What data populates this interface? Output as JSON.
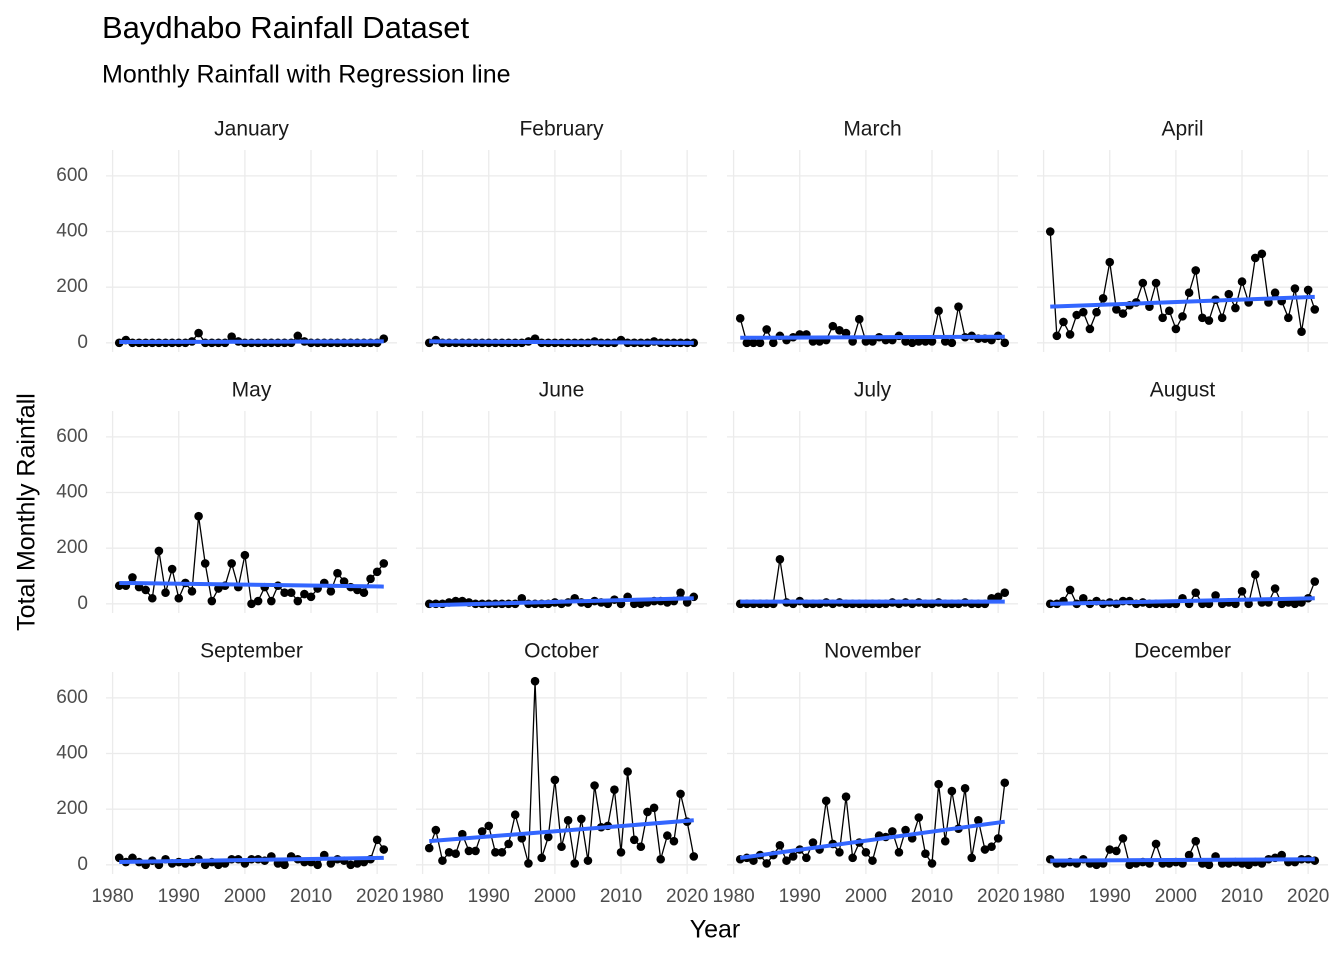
{
  "chart_data": {
    "type": "line",
    "title": "Baydhabo Rainfall Dataset",
    "subtitle": "Monthly  Rainfall with Regression line",
    "xlabel": "Year",
    "ylabel": "Total Monthly Rainfall",
    "x": [
      1981,
      1982,
      1983,
      1984,
      1985,
      1986,
      1987,
      1988,
      1989,
      1990,
      1991,
      1992,
      1993,
      1994,
      1995,
      1996,
      1997,
      1998,
      1999,
      2000,
      2001,
      2002,
      2003,
      2004,
      2005,
      2006,
      2007,
      2008,
      2009,
      2010,
      2011,
      2012,
      2013,
      2014,
      2015,
      2016,
      2017,
      2018,
      2019,
      2020,
      2021
    ],
    "xlim": [
      1979,
      2023
    ],
    "xticks": [
      1980,
      1990,
      2000,
      2010,
      2020
    ],
    "ylim": [
      -33,
      693
    ],
    "yticks": [
      0,
      200,
      400,
      600
    ],
    "grid": true,
    "color": "#000000",
    "trend_color": "#3366ff",
    "panels": [
      {
        "title": "January",
        "values": [
          0,
          10,
          0,
          0,
          0,
          0,
          0,
          0,
          0,
          0,
          0,
          5,
          35,
          0,
          0,
          0,
          0,
          22,
          5,
          0,
          0,
          0,
          0,
          0,
          0,
          0,
          0,
          25,
          5,
          0,
          0,
          0,
          0,
          0,
          0,
          0,
          0,
          0,
          0,
          0,
          15
        ],
        "trend": [
          3,
          5
        ]
      },
      {
        "title": "February",
        "values": [
          0,
          10,
          0,
          0,
          0,
          0,
          0,
          0,
          0,
          0,
          0,
          0,
          0,
          0,
          0,
          5,
          15,
          0,
          0,
          0,
          0,
          0,
          0,
          0,
          0,
          5,
          0,
          0,
          0,
          10,
          0,
          0,
          0,
          0,
          5,
          0,
          0,
          0,
          0,
          0,
          0
        ],
        "trend": [
          5,
          0
        ]
      },
      {
        "title": "March",
        "values": [
          88,
          0,
          0,
          0,
          48,
          0,
          25,
          10,
          20,
          30,
          30,
          5,
          5,
          10,
          60,
          45,
          35,
          5,
          85,
          5,
          5,
          20,
          10,
          10,
          25,
          5,
          0,
          5,
          5,
          5,
          115,
          5,
          0,
          130,
          20,
          25,
          15,
          15,
          10,
          25,
          0
        ],
        "trend": [
          18,
          22
        ]
      },
      {
        "title": "April",
        "values": [
          400,
          25,
          75,
          30,
          100,
          110,
          50,
          110,
          160,
          290,
          120,
          105,
          135,
          145,
          215,
          130,
          215,
          90,
          115,
          50,
          95,
          180,
          260,
          90,
          80,
          155,
          90,
          175,
          125,
          220,
          145,
          305,
          320,
          145,
          180,
          150,
          90,
          195,
          40,
          190,
          120
        ],
        "trend": [
          130,
          165
        ]
      },
      {
        "title": "May",
        "values": [
          65,
          65,
          95,
          60,
          50,
          20,
          190,
          40,
          125,
          20,
          75,
          45,
          315,
          145,
          10,
          55,
          65,
          145,
          60,
          175,
          0,
          10,
          60,
          10,
          65,
          40,
          40,
          10,
          35,
          25,
          55,
          75,
          45,
          110,
          80,
          60,
          50,
          40,
          90,
          115,
          145
        ],
        "trend": [
          75,
          62
        ]
      },
      {
        "title": "June",
        "values": [
          0,
          0,
          0,
          5,
          10,
          10,
          5,
          0,
          0,
          0,
          0,
          0,
          0,
          0,
          20,
          0,
          0,
          0,
          0,
          5,
          0,
          5,
          20,
          5,
          0,
          10,
          5,
          0,
          15,
          0,
          25,
          0,
          0,
          5,
          10,
          10,
          5,
          10,
          40,
          5,
          25
        ],
        "trend": [
          -5,
          20
        ]
      },
      {
        "title": "July",
        "values": [
          0,
          0,
          0,
          0,
          0,
          0,
          160,
          5,
          0,
          10,
          0,
          0,
          0,
          5,
          0,
          5,
          0,
          0,
          0,
          0,
          0,
          0,
          0,
          5,
          0,
          5,
          0,
          5,
          0,
          0,
          5,
          0,
          0,
          0,
          5,
          0,
          0,
          0,
          20,
          25,
          40
        ],
        "trend": [
          8,
          8
        ]
      },
      {
        "title": "August",
        "values": [
          0,
          0,
          10,
          50,
          0,
          20,
          0,
          10,
          0,
          5,
          0,
          10,
          10,
          0,
          5,
          0,
          0,
          0,
          0,
          0,
          20,
          0,
          40,
          0,
          0,
          30,
          0,
          5,
          0,
          45,
          0,
          105,
          5,
          5,
          55,
          0,
          5,
          0,
          5,
          20,
          80
        ],
        "trend": [
          0,
          20
        ]
      },
      {
        "title": "September",
        "values": [
          25,
          10,
          25,
          10,
          0,
          15,
          0,
          20,
          5,
          10,
          5,
          10,
          20,
          0,
          10,
          0,
          5,
          20,
          20,
          5,
          20,
          20,
          15,
          30,
          5,
          0,
          30,
          20,
          10,
          10,
          0,
          35,
          5,
          20,
          15,
          0,
          5,
          10,
          20,
          90,
          55
        ],
        "trend": [
          10,
          25
        ]
      },
      {
        "title": "October",
        "values": [
          60,
          125,
          15,
          45,
          40,
          110,
          50,
          50,
          120,
          140,
          45,
          45,
          75,
          180,
          95,
          5,
          660,
          25,
          100,
          305,
          65,
          160,
          5,
          165,
          15,
          285,
          135,
          140,
          270,
          45,
          335,
          90,
          65,
          190,
          205,
          20,
          105,
          85,
          255,
          155,
          30
        ],
        "trend": [
          85,
          160
        ]
      },
      {
        "title": "November",
        "values": [
          20,
          25,
          15,
          35,
          5,
          35,
          70,
          15,
          30,
          55,
          25,
          80,
          55,
          230,
          75,
          45,
          245,
          25,
          80,
          45,
          15,
          105,
          100,
          120,
          45,
          125,
          95,
          170,
          40,
          5,
          290,
          85,
          265,
          130,
          275,
          25,
          160,
          55,
          65,
          95,
          295
        ],
        "trend": [
          25,
          155
        ]
      },
      {
        "title": "December",
        "values": [
          20,
          5,
          5,
          10,
          5,
          20,
          5,
          0,
          5,
          55,
          50,
          95,
          0,
          5,
          10,
          5,
          75,
          5,
          5,
          10,
          5,
          35,
          85,
          5,
          0,
          30,
          5,
          5,
          10,
          5,
          0,
          10,
          5,
          20,
          25,
          35,
          10,
          10,
          20,
          20,
          15
        ],
        "trend": [
          15,
          20
        ]
      }
    ]
  }
}
